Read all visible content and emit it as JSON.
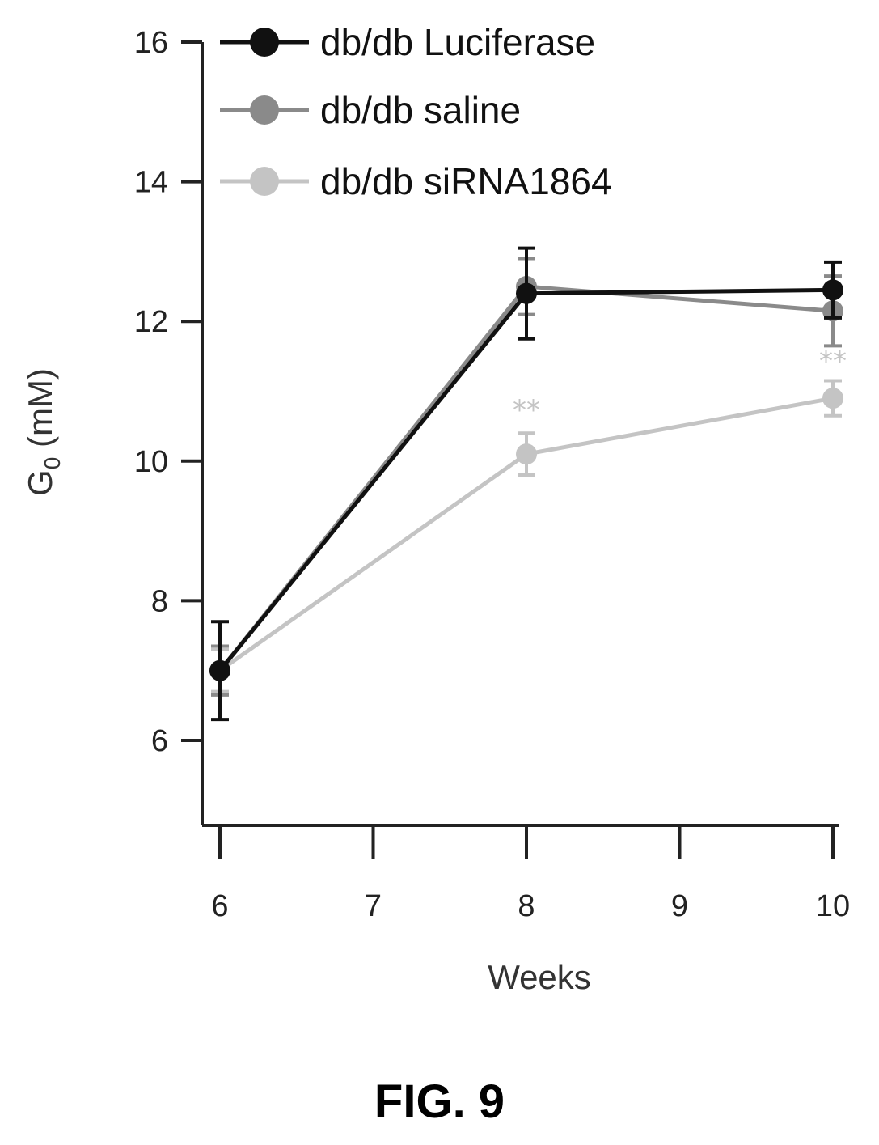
{
  "figure_label": "FIG. 9",
  "chart_data": {
    "type": "line",
    "title": "",
    "xlabel": "Weeks",
    "ylabel": {
      "base": "G",
      "subscript": "0",
      "rest": " (mM)"
    },
    "xlim": [
      6,
      10
    ],
    "ylim": [
      5,
      16
    ],
    "x_ticks": [
      6,
      7,
      8,
      9,
      10
    ],
    "y_ticks": [
      6,
      8,
      10,
      12,
      14,
      16
    ],
    "legend_position": "top-left",
    "series": [
      {
        "name": "db/db Luciferase",
        "color": "#111111",
        "marker": "circle",
        "x": [
          6,
          8,
          10
        ],
        "y": [
          7.0,
          12.4,
          12.45
        ],
        "err": [
          0.7,
          0.65,
          0.4
        ]
      },
      {
        "name": "db/db saline",
        "color": "#8a8a8a",
        "marker": "circle",
        "x": [
          6,
          8,
          10
        ],
        "y": [
          7.0,
          12.5,
          12.15
        ],
        "err": [
          0.35,
          0.4,
          0.5
        ]
      },
      {
        "name": "db/db siRNA1864",
        "color": "#c4c4c4",
        "marker": "circle",
        "x": [
          6,
          8,
          10
        ],
        "y": [
          7.0,
          10.1,
          10.9
        ],
        "err": [
          0.3,
          0.3,
          0.25
        ]
      }
    ],
    "annotations": [
      {
        "text": "**",
        "x": 8,
        "y": 10.6
      },
      {
        "text": "**",
        "x": 10,
        "y": 11.3
      }
    ]
  }
}
